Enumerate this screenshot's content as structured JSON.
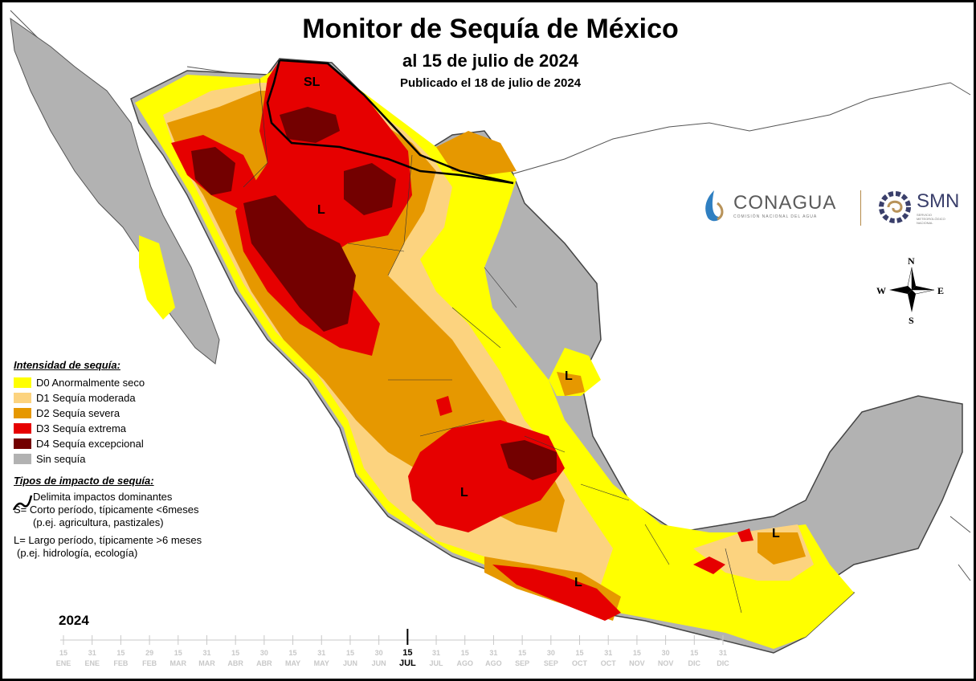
{
  "title": "Monitor de Sequía de México",
  "subtitle": "al 15 de julio de 2024",
  "published": "Publicado el 18 de julio de 2024",
  "logos": {
    "conagua": {
      "name": "CONAGUA",
      "sub": "COMISIÓN NACIONAL DEL AGUA"
    },
    "smn": {
      "name": "SMN",
      "sub": "SERVICIO METEOROLÓGICO NACIONAL"
    }
  },
  "compass": {
    "n": "N",
    "s": "S",
    "e": "E",
    "w": "W"
  },
  "map_labels": {
    "sl": "SL",
    "l1": "L",
    "l2": "L",
    "l3": "L",
    "l4": "L",
    "l5": "L"
  },
  "legend": {
    "heading": "Intensidad de sequía:",
    "items": [
      {
        "label": "D0 Anormalmente seco",
        "color": "#ffff00"
      },
      {
        "label": "D1 Sequía moderada",
        "color": "#fcd37f"
      },
      {
        "label": "D2 Sequía severa",
        "color": "#e69800"
      },
      {
        "label": "D3 Sequía extrema",
        "color": "#e60000"
      },
      {
        "label": "D4 Sequía excepcional",
        "color": "#730000"
      },
      {
        "label": "Sin sequía",
        "color": "#b2b2b2"
      }
    ]
  },
  "impact": {
    "heading": "Tipos de impacto de sequía:",
    "line": "Delimita impactos dominantes",
    "s1": "S= Corto período, típicamente <6meses",
    "s2": "(p.ej. agricultura, pastizales)",
    "l1": "L= Largo período, típicamente >6 meses",
    "l2": "(p.ej. hidrología, ecología)"
  },
  "timeline": {
    "year": "2024",
    "ticks": [
      {
        "d": "15",
        "m": "ENE"
      },
      {
        "d": "31",
        "m": "ENE"
      },
      {
        "d": "15",
        "m": "FEB"
      },
      {
        "d": "29",
        "m": "FEB"
      },
      {
        "d": "15",
        "m": "MAR"
      },
      {
        "d": "31",
        "m": "MAR"
      },
      {
        "d": "15",
        "m": "ABR"
      },
      {
        "d": "30",
        "m": "ABR"
      },
      {
        "d": "15",
        "m": "MAY"
      },
      {
        "d": "31",
        "m": "MAY"
      },
      {
        "d": "15",
        "m": "JUN"
      },
      {
        "d": "30",
        "m": "JUN"
      },
      {
        "d": "15",
        "m": "JUL",
        "current": true
      },
      {
        "d": "31",
        "m": "JUL"
      },
      {
        "d": "15",
        "m": "AGO"
      },
      {
        "d": "31",
        "m": "AGO"
      },
      {
        "d": "15",
        "m": "SEP"
      },
      {
        "d": "30",
        "m": "SEP"
      },
      {
        "d": "15",
        "m": "OCT"
      },
      {
        "d": "31",
        "m": "OCT"
      },
      {
        "d": "15",
        "m": "NOV"
      },
      {
        "d": "30",
        "m": "NOV"
      },
      {
        "d": "15",
        "m": "DIC"
      },
      {
        "d": "31",
        "m": "DIC"
      }
    ]
  }
}
